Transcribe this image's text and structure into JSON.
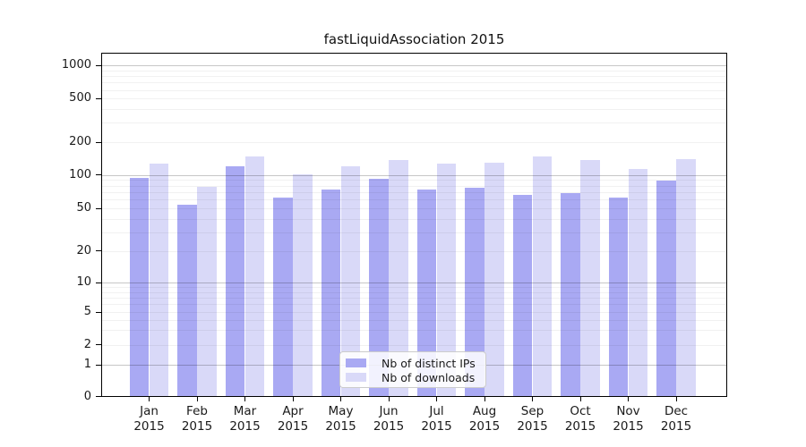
{
  "title": "fastLiquidAssociation 2015",
  "chart_data": {
    "type": "bar",
    "title": "fastLiquidAssociation 2015",
    "categories": [
      "Jan 2015",
      "Feb 2015",
      "Mar 2015",
      "Apr 2015",
      "May 2015",
      "Jun 2015",
      "Jul 2015",
      "Aug 2015",
      "Sep 2015",
      "Oct 2015",
      "Nov 2015",
      "Dec 2015"
    ],
    "series": [
      {
        "name": "Nb of distinct IPs",
        "color": "#a9a9f3",
        "values": [
          94,
          54,
          119,
          62,
          74,
          92,
          74,
          77,
          66,
          69,
          62,
          89
        ]
      },
      {
        "name": "Nb of downloads",
        "color": "#d9d9f8",
        "values": [
          126,
          78,
          147,
          102,
          119,
          138,
          126,
          130,
          148,
          136,
          113,
          140
        ]
      }
    ],
    "xlabel": "",
    "ylabel": "",
    "y_scale": "symlog",
    "y_ticks": [
      1000,
      500,
      200,
      100,
      50,
      20,
      10,
      5,
      2,
      1,
      0
    ],
    "ylim": [
      0,
      1300
    ],
    "grid": true,
    "grid_minor": true,
    "legend_position": "lower-center"
  },
  "colors": {
    "bar_distinct_ips": "#a9a9f3",
    "bar_downloads": "#d9d9f8",
    "axis": "#000000",
    "grid_major": "#b8b8b8",
    "grid_minor": "#ebebeb",
    "background": "#ffffff"
  }
}
